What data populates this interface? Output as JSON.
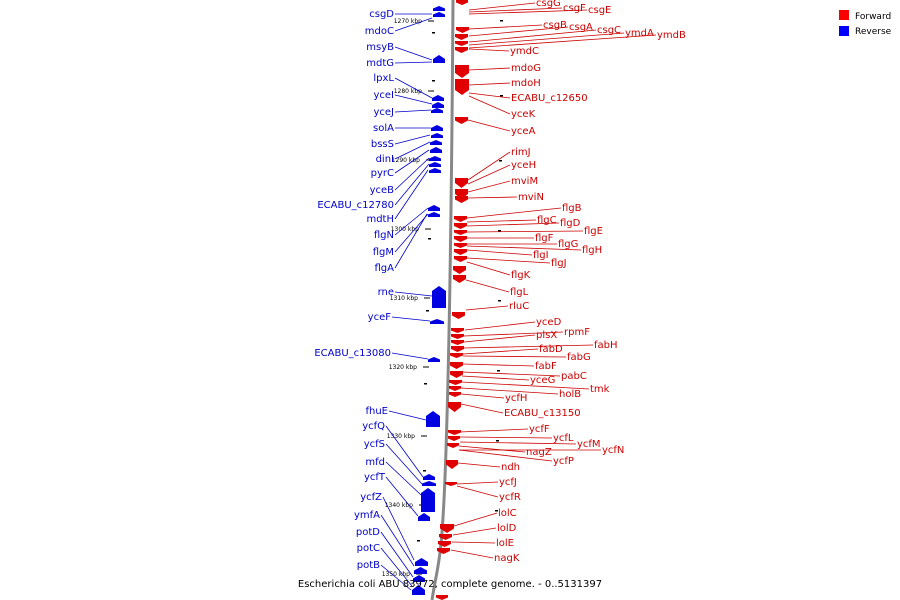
{
  "caption": "Escherichia coli ABU 83972, complete genome. - 0..5131397",
  "legend": [
    {
      "label": "Forward",
      "color": "#ff0000"
    },
    {
      "label": "Reverse",
      "color": "#0000ff"
    }
  ],
  "colors": {
    "forward": "#e00000",
    "reverse": "#0000e0",
    "forward_line": "#cc0000",
    "reverse_line": "#0000cc",
    "axis": "#888888"
  },
  "ticks": [
    "1270 kbp",
    "1280 kbp",
    "1290 kbp",
    "1300 kbp",
    "1310 kbp",
    "1320 kbp",
    "1330 kbp",
    "1340 kbp",
    "1350 kbp"
  ],
  "reverse_labels": [
    "csgD",
    "mdoC",
    "msyB",
    "mdtG",
    "lpxL",
    "yceI",
    "yceJ",
    "solA",
    "bssS",
    "dinI",
    "pyrC",
    "yceB",
    "ECABU_c12780",
    "mdtH",
    "flgN",
    "flgM",
    "flgA",
    "rne",
    "yceF",
    "ECABU_c13080",
    "fhuE",
    "ycfQ",
    "ycfS",
    "mfd",
    "ycfT",
    "ycfZ",
    "ymfA",
    "potD",
    "potC",
    "potB"
  ],
  "forward_labels": [
    "csgG",
    "csgF",
    "csgE",
    "csgB",
    "csgA",
    "csgC",
    "ymdA",
    "ymdB",
    "ymdC",
    "mdoG",
    "mdoH",
    "ECABU_c12650",
    "yceK",
    "yceA",
    "rimJ",
    "yceH",
    "mviM",
    "mviN",
    "flgB",
    "flgC",
    "flgD",
    "flgE",
    "flgF",
    "flgG",
    "flgH",
    "flgI",
    "flgJ",
    "flgK",
    "flgL",
    "rluC",
    "yceD",
    "rpmF",
    "plsX",
    "fabH",
    "fabD",
    "fabG",
    "fabF",
    "pabC",
    "yceG",
    "tmk",
    "holB",
    "ycfH",
    "ECABU_c13150",
    "ycfF",
    "ycfL",
    "ycfM",
    "nagZ",
    "ycfN",
    "ycfP",
    "ndh",
    "ycfJ",
    "ycfR",
    "lolC",
    "lolD",
    "lolE",
    "nagK"
  ]
}
